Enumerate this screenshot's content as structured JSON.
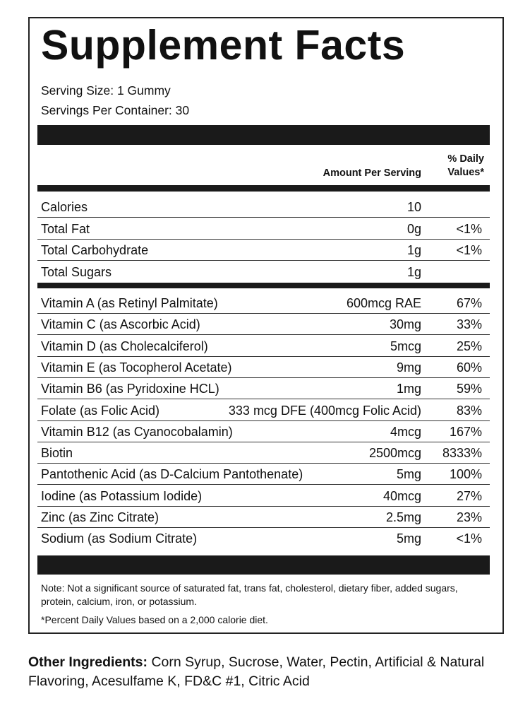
{
  "title": "Supplement Facts",
  "serving_size": "Serving Size: 1 Gummy",
  "servings_per_container": "Servings Per Container: 30",
  "header": {
    "amount": "Amount Per Serving",
    "dv_line1": "% Daily",
    "dv_line2": "Values*"
  },
  "macros": [
    {
      "name": "Calories",
      "amount": "10",
      "dv": ""
    },
    {
      "name": "Total Fat",
      "amount": "0g",
      "dv": "<1%"
    },
    {
      "name": "Total Carbohydrate",
      "amount": "1g",
      "dv": "<1%"
    },
    {
      "name": "Total Sugars",
      "amount": "1g",
      "dv": ""
    }
  ],
  "nutrients": [
    {
      "name": "Vitamin A (as Retinyl Palmitate)",
      "amount": "600mcg RAE",
      "dv": "67%"
    },
    {
      "name": "Vitamin C (as Ascorbic Acid)",
      "amount": "30mg",
      "dv": "33%"
    },
    {
      "name": "Vitamin D (as Cholecalciferol)",
      "amount": "5mcg",
      "dv": "25%"
    },
    {
      "name": "Vitamin E (as Tocopherol Acetate)",
      "amount": "9mg",
      "dv": "60%"
    },
    {
      "name": "Vitamin B6 (as Pyridoxine HCL)",
      "amount": "1mg",
      "dv": "59%"
    },
    {
      "name": "Folate (as Folic Acid)",
      "amount": "333 mcg DFE (400mcg Folic Acid)",
      "dv": "83%"
    },
    {
      "name": "Vitamin B12 (as Cyanocobalamin)",
      "amount": "4mcg",
      "dv": "167%"
    },
    {
      "name": "Biotin",
      "amount": "2500mcg",
      "dv": "8333%"
    },
    {
      "name": "Pantothenic Acid (as D-Calcium Pantothenate)",
      "amount": "5mg",
      "dv": "100%"
    },
    {
      "name": "Iodine (as Potassium Iodide)",
      "amount": "40mcg",
      "dv": "27%"
    },
    {
      "name": "Zinc (as Zinc Citrate)",
      "amount": "2.5mg",
      "dv": "23%"
    },
    {
      "name": "Sodium (as Sodium Citrate)",
      "amount": "5mg",
      "dv": "<1%"
    }
  ],
  "note": "Note: Not a significant source of saturated fat, trans fat, cholesterol, dietary fiber, added sugars, protein, calcium, iron, or potassium.",
  "footnote": "*Percent Daily Values based on a 2,000 calorie diet.",
  "other_ingredients": {
    "label": "Other Ingredients:",
    "text": " Corn Syrup, Sucrose, Water, Pectin, Artificial & Natural Flavoring, Acesulfame K, FD&C #1, Citric Acid"
  }
}
